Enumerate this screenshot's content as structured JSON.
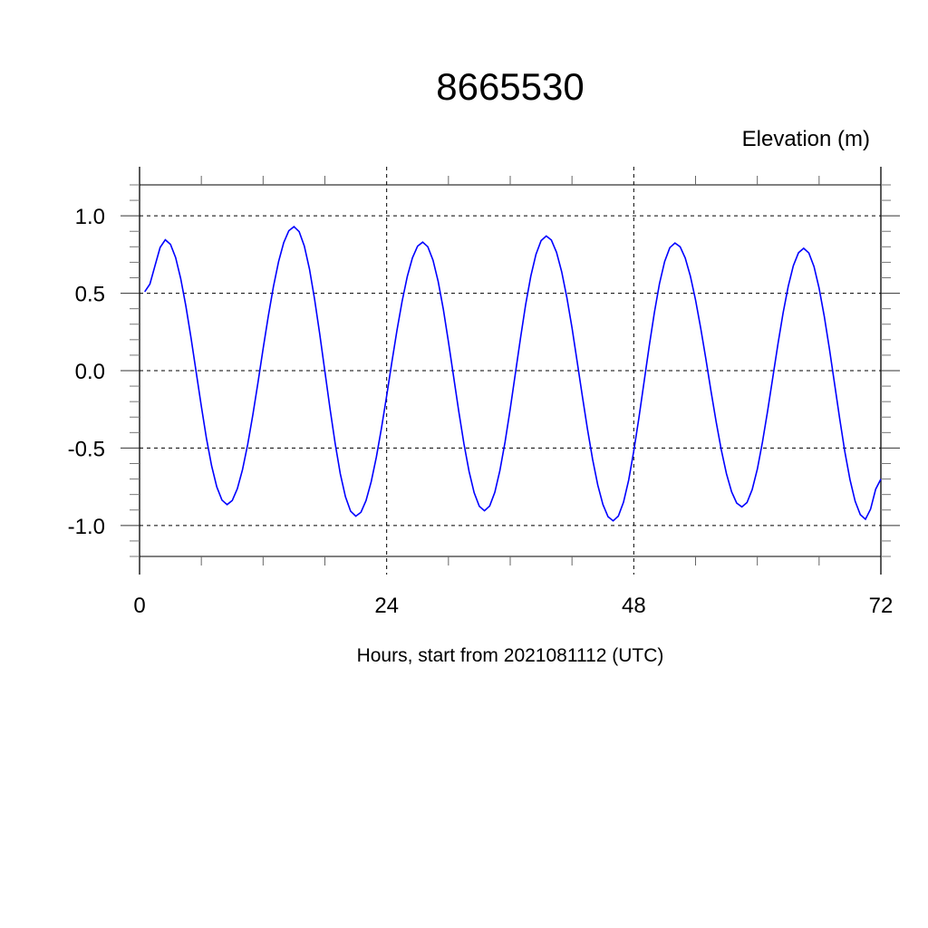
{
  "chart_data": {
    "type": "line",
    "title": "8665530",
    "ylabel": "Elevation (m)",
    "xlabel": "Hours, start from 2021081112 (UTC)",
    "xlim": [
      0,
      72
    ],
    "ylim": [
      -1.2,
      1.2
    ],
    "x_ticks": [
      0,
      24,
      48,
      72
    ],
    "x_tick_labels": [
      "0",
      "24",
      "48",
      "72"
    ],
    "y_ticks": [
      -1.0,
      -0.5,
      0.0,
      0.5,
      1.0
    ],
    "y_tick_labels": [
      "-1.0",
      "-0.5",
      "0.0",
      "0.5",
      "1.0"
    ],
    "grid": true,
    "grid_style": "dashed",
    "line_color": "#0000ff",
    "series": [
      {
        "x": [
          0.5,
          2.5,
          8.5,
          15,
          21,
          27.5,
          33.5,
          39.5,
          46,
          52,
          58.5,
          64.5,
          70.5,
          72
        ],
        "y": [
          0.51,
          0.845,
          -0.865,
          0.93,
          -0.94,
          0.83,
          -0.905,
          0.87,
          -0.97,
          0.825,
          -0.88,
          0.79,
          -0.96,
          -0.7
        ]
      }
    ]
  }
}
